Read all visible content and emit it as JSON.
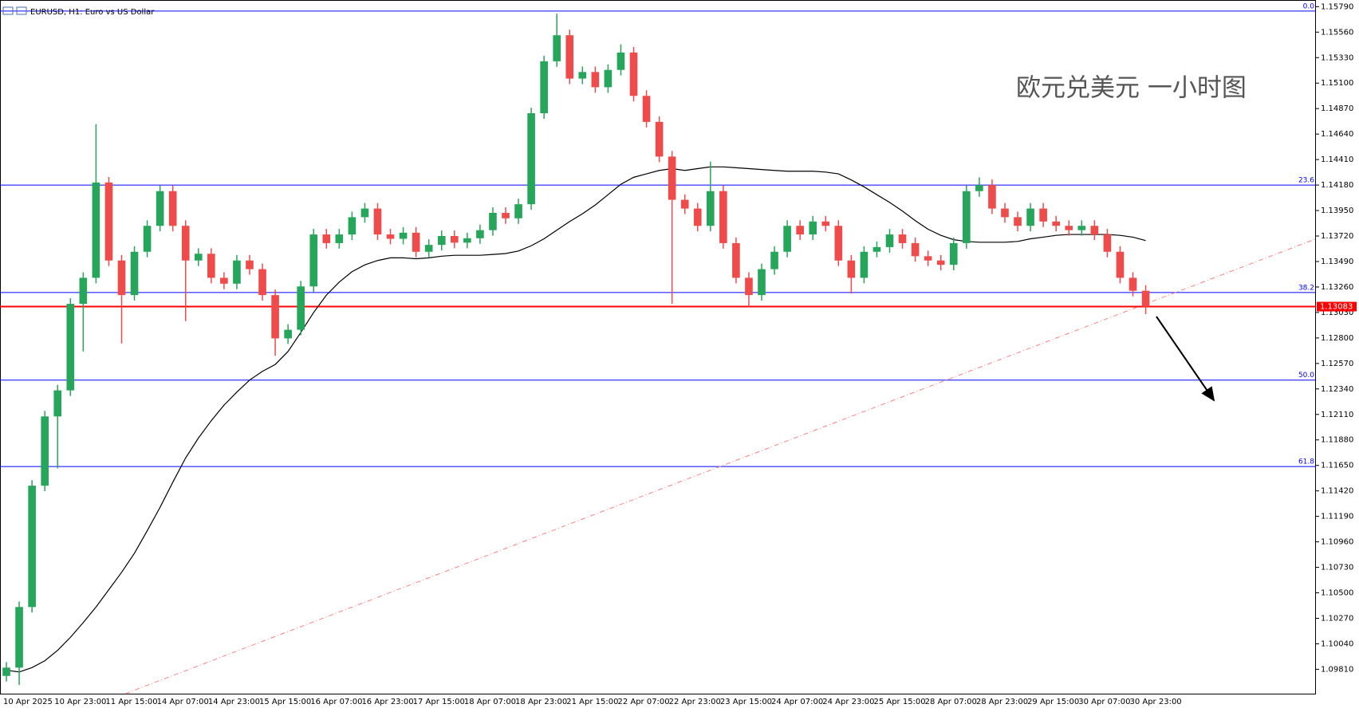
{
  "chart_data": {
    "type": "candlestick",
    "title": "EURUSD, H1:  Euro vs US Dollar",
    "annotation": "欧元兑美元 一小时图",
    "categories": [
      "10 Apr 2025",
      null,
      null,
      null,
      "10 Apr 23:00",
      null,
      null,
      null,
      "11 Apr 15:00",
      null,
      null,
      null,
      "14 Apr 07:00",
      null,
      null,
      null,
      "14 Apr 23:00",
      null,
      null,
      null,
      "15 Apr 15:00",
      null,
      null,
      null,
      "16 Apr 07:00",
      null,
      null,
      null,
      "16 Apr 23:00",
      null,
      null,
      null,
      "17 Apr 15:00",
      null,
      null,
      null,
      "18 Apr 07:00",
      null,
      null,
      null,
      "18 Apr 23:00",
      null,
      null,
      null,
      "21 Apr 15:00",
      null,
      null,
      null,
      "22 Apr 07:00",
      null,
      null,
      null,
      "22 Apr 23:00",
      null,
      null,
      null,
      "23 Apr 15:00",
      null,
      null,
      null,
      "24 Apr 07:00",
      null,
      null,
      null,
      "24 Apr 23:00",
      null,
      null,
      null,
      "25 Apr 15:00",
      null,
      null,
      null,
      "28 Apr 07:00",
      null,
      null,
      null,
      "28 Apr 23:00",
      null,
      null,
      null,
      "29 Apr 15:00",
      null,
      null,
      null,
      "30 Apr 07:00",
      null,
      null,
      null,
      "30 Apr 23:00",
      null
    ],
    "open": [
      1.0975,
      1.09825,
      1.10372,
      1.11467,
      1.12092,
      1.12327,
      1.13108,
      1.13343,
      1.14203,
      1.13499,
      1.13187,
      1.13578,
      1.13812,
      1.14125,
      1.13812,
      1.13499,
      1.1356,
      1.13343,
      1.1329,
      1.13499,
      1.13421,
      1.13187,
      1.12796,
      1.12874,
      1.13265,
      1.13734,
      1.13656,
      1.13734,
      1.1389,
      1.13968,
      1.13734,
      1.13695,
      1.1375,
      1.13578,
      1.1364,
      1.1372,
      1.1366,
      1.137,
      1.13773,
      1.13929,
      1.1388,
      1.14007,
      1.14828,
      1.15297,
      1.15532,
      1.15141,
      1.152,
      1.15063,
      1.15219,
      1.15376,
      1.14985,
      1.1475,
      1.14437,
      1.14047,
      1.13968,
      1.13812,
      1.14125,
      1.13656,
      1.13343,
      1.13187,
      1.13421,
      1.13578,
      1.13812,
      1.13734,
      1.13851,
      1.13812,
      1.13499,
      1.13343,
      1.13578,
      1.1362,
      1.13734,
      1.13656,
      1.13538,
      1.13499,
      1.1346,
      1.13656,
      1.14125,
      1.1418,
      1.13968,
      1.1389,
      1.13812,
      1.13968,
      1.13851,
      1.13812,
      1.13773,
      1.13812,
      1.13734,
      1.13578,
      1.13343,
      1.13226
    ],
    "high": [
      1.09875,
      1.10422,
      1.11517,
      1.12142,
      1.12377,
      1.13158,
      1.13393,
      1.1473,
      1.14253,
      1.13549,
      1.13628,
      1.13862,
      1.14175,
      1.14175,
      1.13862,
      1.1361,
      1.1361,
      1.13393,
      1.13549,
      1.13549,
      1.13471,
      1.13237,
      1.12924,
      1.13315,
      1.13784,
      1.13784,
      1.13784,
      1.1394,
      1.14018,
      1.14018,
      1.13784,
      1.138,
      1.138,
      1.1369,
      1.1377,
      1.1377,
      1.1375,
      1.13823,
      1.13979,
      1.13979,
      1.14057,
      1.14878,
      1.15347,
      1.15727,
      1.15582,
      1.1525,
      1.1525,
      1.15269,
      1.1545,
      1.15426,
      1.15035,
      1.148,
      1.14487,
      1.14097,
      1.14018,
      1.14391,
      1.14175,
      1.13706,
      1.13393,
      1.13471,
      1.13628,
      1.13862,
      1.13862,
      1.13901,
      1.13901,
      1.13862,
      1.13549,
      1.13628,
      1.1367,
      1.13784,
      1.13784,
      1.13706,
      1.13588,
      1.13549,
      1.13706,
      1.14175,
      1.1425,
      1.1423,
      1.14018,
      1.1394,
      1.14018,
      1.14018,
      1.13901,
      1.13862,
      1.13862,
      1.13862,
      1.13784,
      1.13628,
      1.13393,
      1.13276
    ],
    "low": [
      1.097,
      1.09668,
      1.10322,
      1.11417,
      1.11623,
      1.12277,
      1.12678,
      1.13293,
      1.13449,
      1.1275,
      1.13137,
      1.13528,
      1.13762,
      1.13762,
      1.12952,
      1.13449,
      1.13293,
      1.1324,
      1.1324,
      1.13371,
      1.13137,
      1.12639,
      1.12746,
      1.12824,
      1.13215,
      1.13606,
      1.13606,
      1.13684,
      1.1384,
      1.13684,
      1.13645,
      1.13645,
      1.13528,
      1.13528,
      1.1359,
      1.1361,
      1.1361,
      1.1365,
      1.13723,
      1.1383,
      1.1383,
      1.13957,
      1.14778,
      1.15247,
      1.15091,
      1.15091,
      1.15013,
      1.15013,
      1.15169,
      1.14935,
      1.147,
      1.14387,
      1.13108,
      1.13918,
      1.13762,
      1.13762,
      1.13606,
      1.13293,
      1.1308,
      1.13137,
      1.13371,
      1.13528,
      1.13684,
      1.13684,
      1.13762,
      1.13449,
      1.132,
      1.13293,
      1.13528,
      1.1357,
      1.13606,
      1.13488,
      1.13449,
      1.1341,
      1.1341,
      1.13606,
      1.14075,
      1.13918,
      1.1384,
      1.13762,
      1.13762,
      1.13801,
      1.13762,
      1.13723,
      1.13723,
      1.13684,
      1.13528,
      1.13293,
      1.13176,
      1.13015
    ],
    "close": [
      1.09825,
      1.10372,
      1.11467,
      1.12092,
      1.12327,
      1.13108,
      1.13343,
      1.14203,
      1.13499,
      1.13187,
      1.13578,
      1.13812,
      1.14125,
      1.13812,
      1.13499,
      1.1356,
      1.13343,
      1.1329,
      1.13499,
      1.13421,
      1.13187,
      1.12796,
      1.12874,
      1.13265,
      1.13734,
      1.13656,
      1.13734,
      1.1389,
      1.13968,
      1.13734,
      1.13695,
      1.1375,
      1.13578,
      1.1364,
      1.1372,
      1.1366,
      1.137,
      1.13773,
      1.13929,
      1.1388,
      1.14007,
      1.14828,
      1.15297,
      1.15532,
      1.15141,
      1.152,
      1.15063,
      1.15219,
      1.15376,
      1.14985,
      1.1475,
      1.14437,
      1.14047,
      1.13968,
      1.13812,
      1.14125,
      1.13656,
      1.13343,
      1.13187,
      1.13421,
      1.13578,
      1.13812,
      1.13734,
      1.13851,
      1.13812,
      1.13499,
      1.13343,
      1.13578,
      1.1362,
      1.13734,
      1.13656,
      1.13538,
      1.13499,
      1.1346,
      1.13656,
      1.14125,
      1.1418,
      1.13968,
      1.1389,
      1.13812,
      1.13968,
      1.13851,
      1.13812,
      1.13773,
      1.13812,
      1.13734,
      1.13578,
      1.13343,
      1.13226,
      1.13083
    ],
    "up_color": "#26a65b",
    "down_color": "#ef4b4b",
    "moving_average": {
      "color": "#000000",
      "values": [
        1.09801,
        1.09786,
        1.09825,
        1.09887,
        1.09981,
        1.10098,
        1.10231,
        1.10372,
        1.10528,
        1.10685,
        1.10857,
        1.1106,
        1.11271,
        1.11498,
        1.11717,
        1.11897,
        1.12053,
        1.12194,
        1.12311,
        1.1242,
        1.12499,
        1.12561,
        1.12678,
        1.1285,
        1.1303,
        1.13187,
        1.13304,
        1.13398,
        1.1346,
        1.13499,
        1.13523,
        1.13523,
        1.13515,
        1.13523,
        1.13538,
        1.13546,
        1.13546,
        1.13546,
        1.13554,
        1.13562,
        1.13585,
        1.13632,
        1.13695,
        1.13773,
        1.13851,
        1.13921,
        1.14,
        1.14093,
        1.14187,
        1.1425,
        1.14281,
        1.14312,
        1.14328,
        1.14312,
        1.14328,
        1.14344,
        1.14344,
        1.14336,
        1.14328,
        1.1432,
        1.14312,
        1.14305,
        1.14305,
        1.14305,
        1.14297,
        1.14281,
        1.14226,
        1.14164,
        1.14093,
        1.14023,
        1.13945,
        1.13859,
        1.13781,
        1.13726,
        1.13687,
        1.13671,
        1.13664,
        1.13664,
        1.13664,
        1.13671,
        1.13695,
        1.1371,
        1.13726,
        1.13734,
        1.13734,
        1.13734,
        1.13734,
        1.13726,
        1.1371,
        1.13679
      ]
    },
    "fib_levels": [
      {
        "value": 1.1575,
        "label": "0.0"
      },
      {
        "value": 1.1418,
        "label": "23.6"
      },
      {
        "value": 1.1321,
        "label": "38.2"
      },
      {
        "value": 1.1242,
        "label": "50.0"
      },
      {
        "value": 1.1164,
        "label": "61.8"
      }
    ],
    "fib_color": "#0000ff",
    "bid_line": 1.13083,
    "bid_color": "#ff0000",
    "trendline": {
      "color": "#ff8080",
      "x": [
        9.3,
        102.2
      ],
      "y": [
        1.0959,
        1.1369
      ]
    },
    "xlim": [
      -0.5,
      102.3
    ],
    "ylim": [
      1.0959,
      1.1585
    ],
    "yticks": [
      {
        "value": 1.1579,
        "label": "1.15790"
      },
      {
        "value": 1.1556,
        "label": "1.15560"
      },
      {
        "value": 1.1533,
        "label": "1.15330"
      },
      {
        "value": 1.151,
        "label": "1.15100"
      },
      {
        "value": 1.1487,
        "label": "1.14870"
      },
      {
        "value": 1.1464,
        "label": "1.14640"
      },
      {
        "value": 1.1441,
        "label": "1.14410"
      },
      {
        "value": 1.1418,
        "label": "1.14180"
      },
      {
        "value": 1.1395,
        "label": "1.13950"
      },
      {
        "value": 1.1372,
        "label": "1.13720"
      },
      {
        "value": 1.1349,
        "label": "1.13490"
      },
      {
        "value": 1.1326,
        "label": "1.13260"
      },
      {
        "value": 1.1303,
        "label": "1.13030"
      },
      {
        "value": 1.128,
        "label": "1.12800"
      },
      {
        "value": 1.1257,
        "label": "1.12570"
      },
      {
        "value": 1.1234,
        "label": "1.12340"
      },
      {
        "value": 1.1211,
        "label": "1.12110"
      },
      {
        "value": 1.1188,
        "label": "1.11880"
      },
      {
        "value": 1.1165,
        "label": "1.11650"
      },
      {
        "value": 1.1142,
        "label": "1.11420"
      },
      {
        "value": 1.1119,
        "label": "1.11190"
      },
      {
        "value": 1.1096,
        "label": "1.10960"
      },
      {
        "value": 1.1073,
        "label": "1.10730"
      },
      {
        "value": 1.105,
        "label": "1.10500"
      },
      {
        "value": 1.1027,
        "label": "1.10270"
      },
      {
        "value": 1.1004,
        "label": "1.10040"
      },
      {
        "value": 1.0981,
        "label": "1.09810"
      }
    ],
    "grid": false
  }
}
